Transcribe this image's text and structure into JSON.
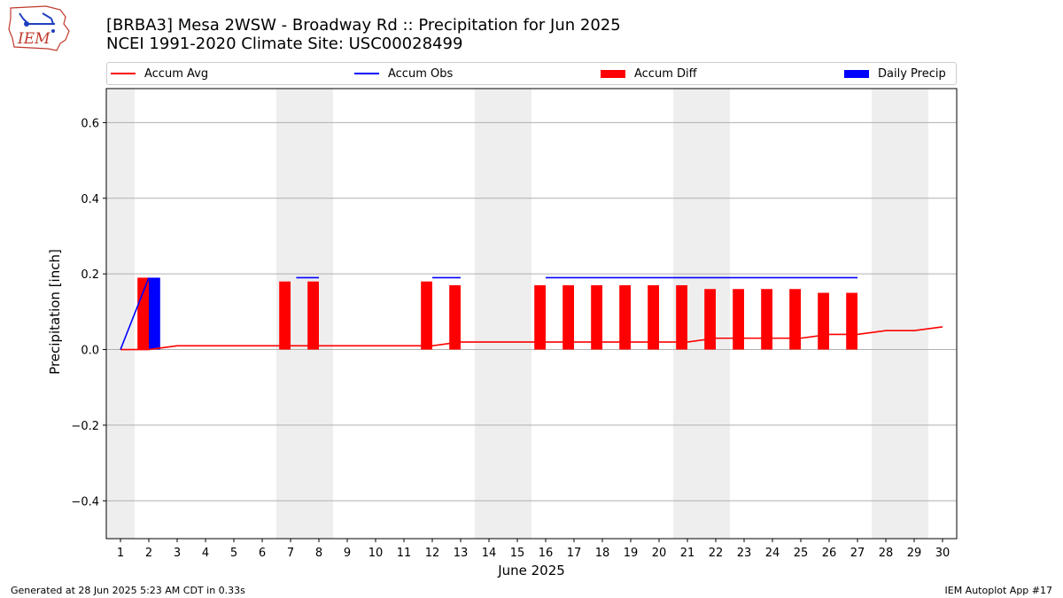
{
  "header": {
    "title_line1": "[BRBA3] Mesa 2WSW - Broadway Rd :: Precipitation for Jun 2025",
    "title_line2": "NCEI 1991-2020 Climate Site: USC00028499",
    "logo_text": "IEM"
  },
  "legend": [
    {
      "label": "Accum Avg",
      "color": "#ff0000",
      "kind": "line"
    },
    {
      "label": "Accum Obs",
      "color": "#0000ff",
      "kind": "line"
    },
    {
      "label": "Accum Diff",
      "color": "#ff0000",
      "kind": "bar"
    },
    {
      "label": "Daily Precip",
      "color": "#0000ff",
      "kind": "bar"
    }
  ],
  "footer": {
    "left": "Generated at 28 Jun 2025 5:23 AM CDT in 0.33s",
    "right": "IEM Autoplot App #17"
  },
  "chart_data": {
    "type": "bar",
    "title": "[BRBA3] Mesa 2WSW - Broadway Rd :: Precipitation for Jun 2025",
    "subtitle": "NCEI 1991-2020 Climate Site: USC00028499",
    "xlabel": "June 2025",
    "ylabel": "Precipitation [inch]",
    "xlim": [
      0.5,
      30.5
    ],
    "ylim": [
      -0.5,
      0.69
    ],
    "yticks": [
      -0.4,
      -0.2,
      0.0,
      0.2,
      0.4,
      0.6
    ],
    "ytick_labels": [
      "−0.4",
      "−0.2",
      "0.0",
      "0.2",
      "0.4",
      "0.6"
    ],
    "x": [
      1,
      2,
      3,
      4,
      5,
      6,
      7,
      8,
      9,
      10,
      11,
      12,
      13,
      14,
      15,
      16,
      17,
      18,
      19,
      20,
      21,
      22,
      23,
      24,
      25,
      26,
      27,
      28,
      29,
      30
    ],
    "grid": "y",
    "weekend_shading": [
      [
        0.5,
        1.5
      ],
      [
        6.5,
        8.5
      ],
      [
        13.5,
        15.5
      ],
      [
        20.5,
        22.5
      ],
      [
        27.5,
        29.5
      ]
    ],
    "shade_color": "#eeeeee",
    "series": [
      {
        "name": "Accum Avg",
        "kind": "line",
        "color": "#ff0000",
        "x": [
          1,
          2,
          3,
          4,
          5,
          6,
          7,
          8,
          9,
          10,
          11,
          12,
          13,
          14,
          15,
          16,
          17,
          18,
          19,
          20,
          21,
          22,
          23,
          24,
          25,
          26,
          27,
          28,
          29,
          30
        ],
        "values": [
          0.0,
          0.0,
          0.01,
          0.01,
          0.01,
          0.01,
          0.01,
          0.01,
          0.01,
          0.01,
          0.01,
          0.01,
          0.02,
          0.02,
          0.02,
          0.02,
          0.02,
          0.02,
          0.02,
          0.02,
          0.02,
          0.03,
          0.03,
          0.03,
          0.03,
          0.04,
          0.04,
          0.05,
          0.05,
          0.06
        ]
      },
      {
        "name": "Accum Obs",
        "kind": "line",
        "color": "#0000ff",
        "segments": [
          {
            "x": [
              1,
              2
            ],
            "values": [
              0.0,
              0.19
            ]
          },
          {
            "x": [
              7.2,
              8.0
            ],
            "values": [
              0.19,
              0.19
            ]
          },
          {
            "x": [
              12.0,
              13.0
            ],
            "values": [
              0.19,
              0.19
            ]
          },
          {
            "x": [
              16.0,
              27.0
            ],
            "values": [
              0.19,
              0.19
            ]
          }
        ]
      },
      {
        "name": "Accum Diff",
        "kind": "bar",
        "color": "#ff0000",
        "x": [
          1.8,
          6.8,
          7.8,
          11.8,
          12.8,
          15.8,
          16.8,
          17.8,
          18.8,
          19.8,
          20.8,
          21.8,
          22.8,
          23.8,
          24.8,
          25.8,
          26.8
        ],
        "values": [
          0.19,
          0.18,
          0.18,
          0.18,
          0.17,
          0.17,
          0.17,
          0.17,
          0.17,
          0.17,
          0.17,
          0.16,
          0.16,
          0.16,
          0.16,
          0.15,
          0.15
        ]
      },
      {
        "name": "Daily Precip",
        "kind": "bar",
        "color": "#0000ff",
        "x": [
          2.2
        ],
        "values": [
          0.19
        ]
      }
    ]
  }
}
